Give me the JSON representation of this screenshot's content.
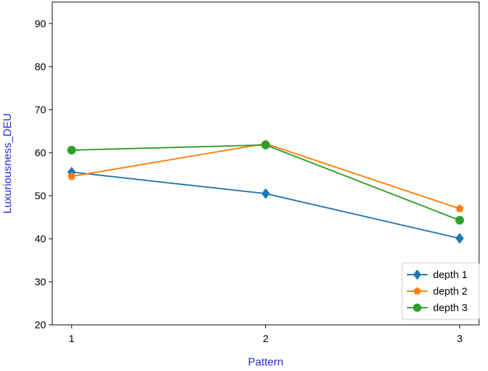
{
  "chart_data": {
    "type": "line",
    "title": "",
    "xlabel": "Pattern",
    "ylabel": "Luxuriousness_DEU",
    "label_color": "#2a2ae0",
    "x": [
      1,
      2,
      3
    ],
    "x_ticks": [
      "1",
      "2",
      "3"
    ],
    "xlim": [
      0.9,
      3.1
    ],
    "ylim": [
      20,
      95
    ],
    "y_ticks": [
      "20",
      "30",
      "40",
      "50",
      "60",
      "70",
      "80",
      "90"
    ],
    "grid": false,
    "legend_position": "lower-right",
    "series": [
      {
        "name": "depth 1",
        "values": [
          55.5,
          50.5,
          40.1
        ],
        "color": "#1f77b4",
        "marker": "diamond"
      },
      {
        "name": "depth 2",
        "values": [
          54.5,
          62.1,
          47.0
        ],
        "color": "#ff7f0e",
        "marker": "pentagon"
      },
      {
        "name": "depth 3",
        "values": [
          60.6,
          61.8,
          44.3
        ],
        "color": "#2ca02c",
        "marker": "circle"
      }
    ]
  }
}
